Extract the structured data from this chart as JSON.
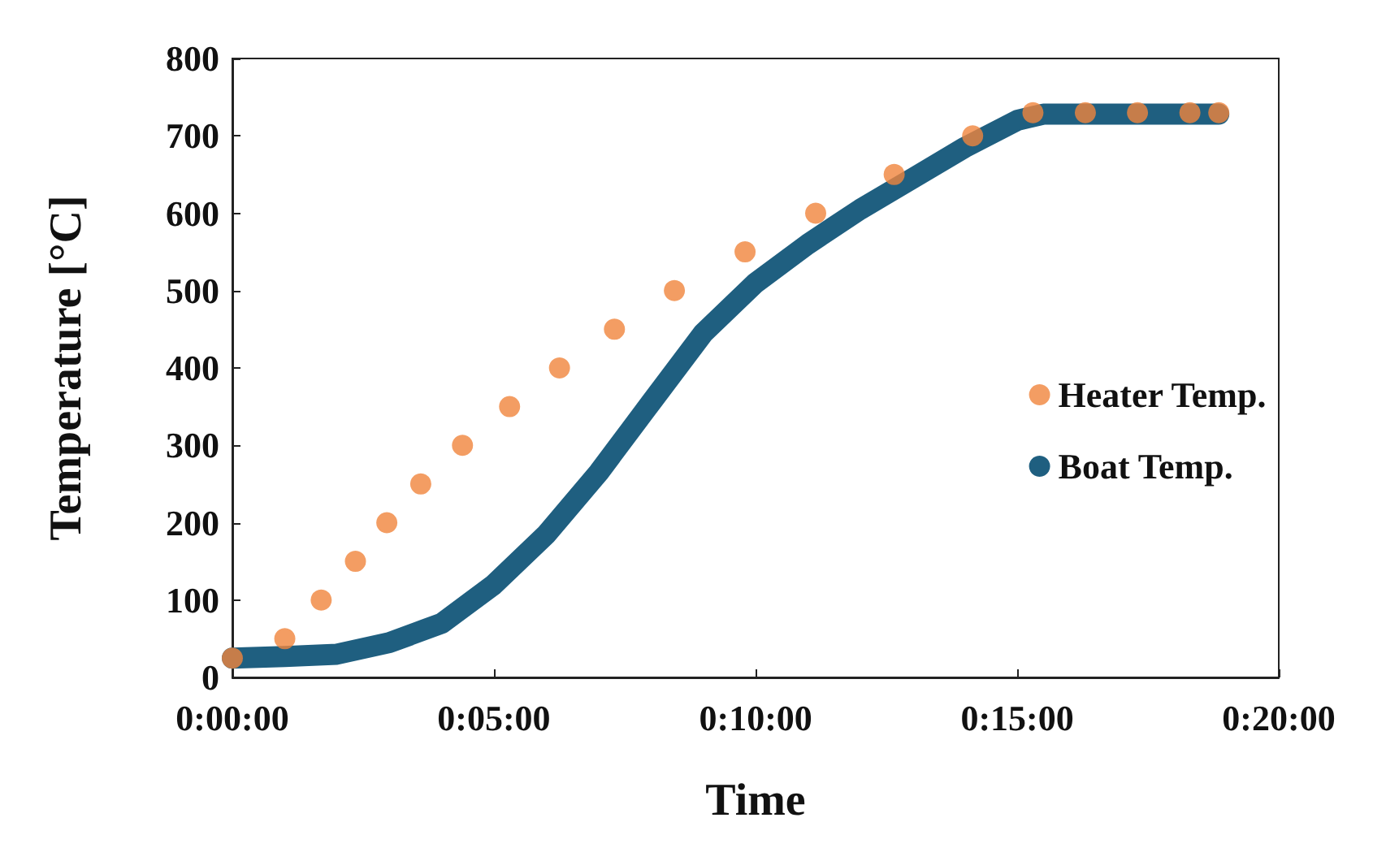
{
  "chart_data": {
    "type": "scatter",
    "xlabel": "Time",
    "ylabel": "Temperature [°C]",
    "xlim": [
      0,
      0.3333
    ],
    "xticks": [
      {
        "value": 0,
        "label": "0:00:00"
      },
      {
        "value": 0.0833,
        "label": "0:05:00"
      },
      {
        "value": 0.1667,
        "label": "0:10:00"
      },
      {
        "value": 0.25,
        "label": "0:15:00"
      },
      {
        "value": 0.3333,
        "label": "0:20:00"
      }
    ],
    "ylim": [
      0,
      800
    ],
    "yticks": [
      0,
      100,
      200,
      300,
      400,
      500,
      600,
      700,
      800
    ],
    "grid": false,
    "legend": "right",
    "marker": "circle",
    "series": [
      {
        "name": "Heater Temp.",
        "type": "scatter",
        "color": "#f0843c",
        "x": [
          0,
          0.0167,
          0.0283,
          0.0392,
          0.0492,
          0.06,
          0.0733,
          0.0883,
          0.1042,
          0.1217,
          0.1408,
          0.1633,
          0.1858,
          0.2108,
          0.2358,
          0.255,
          0.2717,
          0.2883,
          0.305,
          0.3142
        ],
        "values": [
          25,
          50,
          100,
          150,
          200,
          250,
          300,
          350,
          400,
          450,
          500,
          550,
          600,
          650,
          700,
          730,
          730,
          730,
          730,
          730
        ]
      },
      {
        "name": "Boat Temp.",
        "type": "line",
        "marker": "none",
        "color": "#1f5f80",
        "x": [
          0,
          0.0167,
          0.0333,
          0.05,
          0.0667,
          0.0833,
          0.1,
          0.1167,
          0.1333,
          0.15,
          0.1667,
          0.1833,
          0.2,
          0.2167,
          0.2333,
          0.25,
          0.2583,
          0.2667,
          0.2833,
          0.3,
          0.3142
        ],
        "values": [
          25,
          27,
          30,
          45,
          70,
          120,
          185,
          265,
          355,
          445,
          510,
          560,
          605,
          645,
          685,
          720,
          728,
          728,
          728,
          728,
          728
        ]
      }
    ]
  }
}
